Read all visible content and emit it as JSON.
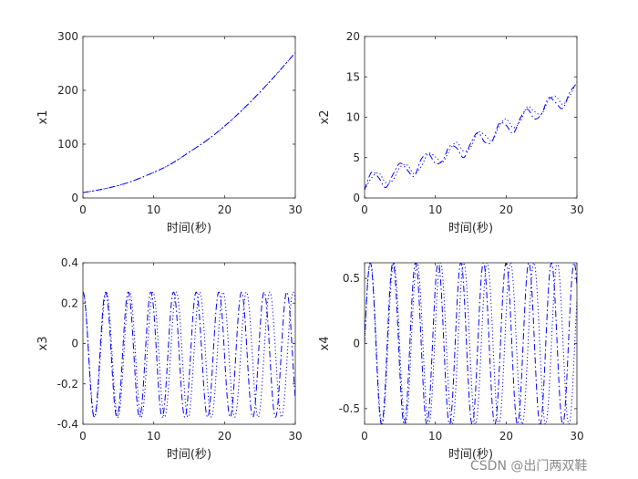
{
  "colors": {
    "series": "#0000ff",
    "axes": "#262626",
    "background": "#ffffff"
  },
  "watermark": "CSDN @出门两双鞋",
  "chart_data": [
    {
      "type": "line",
      "xlabel": "时间(秒)",
      "ylabel": "x1",
      "xlim": [
        0,
        30
      ],
      "ylim": [
        0,
        300
      ],
      "xticks": [
        0,
        10,
        20,
        30
      ],
      "yticks": [
        0,
        100,
        200,
        300
      ],
      "series": [
        {
          "style": "dashdot",
          "x": [
            0,
            3,
            6,
            9,
            12,
            15,
            18,
            21,
            24,
            27,
            30
          ],
          "values": [
            10,
            17,
            27,
            42,
            60,
            85,
            112,
            145,
            183,
            225,
            270
          ]
        },
        {
          "style": "dotted",
          "x": [
            0,
            3,
            6,
            9,
            12,
            15,
            18,
            21,
            24,
            27,
            30
          ],
          "values": [
            10,
            17,
            27,
            42,
            60,
            85,
            112,
            145,
            183,
            225,
            270
          ]
        }
      ]
    },
    {
      "type": "line",
      "xlabel": "时间(秒)",
      "ylabel": "x2",
      "xlim": [
        0,
        30
      ],
      "ylim": [
        0,
        20
      ],
      "xticks": [
        0,
        10,
        20,
        30
      ],
      "yticks": [
        0,
        5,
        10,
        15,
        20
      ],
      "series": [
        {
          "style": "dashdot",
          "x": [
            0,
            1,
            2,
            3,
            4,
            5,
            6,
            7,
            8,
            9,
            10,
            11,
            12,
            13,
            14,
            15,
            16,
            17,
            18,
            19,
            20,
            21,
            22,
            23,
            24,
            25,
            26,
            27,
            28,
            29,
            30
          ],
          "values": [
            1,
            3.2,
            2.5,
            1.3,
            2.9,
            4.3,
            3.5,
            2.7,
            4.8,
            5.5,
            4.3,
            4.6,
            6.4,
            6.2,
            5.0,
            6.8,
            8.1,
            6.9,
            7.0,
            9.2,
            9.0,
            8.0,
            9.9,
            11.0,
            9.8,
            10.4,
            12.4,
            11.8,
            11.1,
            13.1,
            14.2
          ]
        },
        {
          "style": "dotted",
          "x": [
            0,
            1,
            2,
            3,
            4,
            5,
            6,
            7,
            8,
            9,
            10,
            11,
            12,
            13,
            14,
            15,
            16,
            17,
            18,
            19,
            20,
            21,
            22,
            23,
            24,
            25,
            26,
            27,
            28,
            29,
            30
          ],
          "values": [
            1,
            2.5,
            3.1,
            1.9,
            2.2,
            3.8,
            4.1,
            3.0,
            3.9,
            5.5,
            5.1,
            4.4,
            5.9,
            6.9,
            5.8,
            6.3,
            8.1,
            7.8,
            7.1,
            8.9,
            9.8,
            8.7,
            9.5,
            11.3,
            10.7,
            10.4,
            12.1,
            12.6,
            11.6,
            12.7,
            14.4
          ]
        }
      ]
    },
    {
      "type": "line",
      "xlabel": "时间(秒)",
      "ylabel": "x3",
      "xlim": [
        0,
        30
      ],
      "ylim": [
        -0.4,
        0.4
      ],
      "xticks": [
        0,
        10,
        20,
        30
      ],
      "yticks": [
        -0.4,
        -0.2,
        0,
        0.2,
        0.4
      ],
      "series": [
        {
          "style": "dashdot",
          "period": 3.2,
          "amplitude": 0.31,
          "offset": -0.055,
          "peak_at": 0
        },
        {
          "style": "dotted",
          "period": 3.3,
          "amplitude": 0.31,
          "offset": -0.055,
          "peak_at": 0
        }
      ]
    },
    {
      "type": "line",
      "xlabel": "时间(秒)",
      "ylabel": "x4",
      "xlim": [
        0,
        30
      ],
      "ylim": [
        -0.62,
        0.62
      ],
      "xticks": [
        0,
        10,
        20,
        30
      ],
      "yticks": [
        -0.5,
        0,
        0.5
      ],
      "series": [
        {
          "style": "dashdot",
          "period": 3.2,
          "amplitude": 0.62,
          "offset": 0,
          "peak_at": 0.8
        },
        {
          "style": "dotted",
          "period": 3.3,
          "amplitude": 0.62,
          "offset": 0,
          "peak_at": 0.82
        }
      ]
    }
  ]
}
